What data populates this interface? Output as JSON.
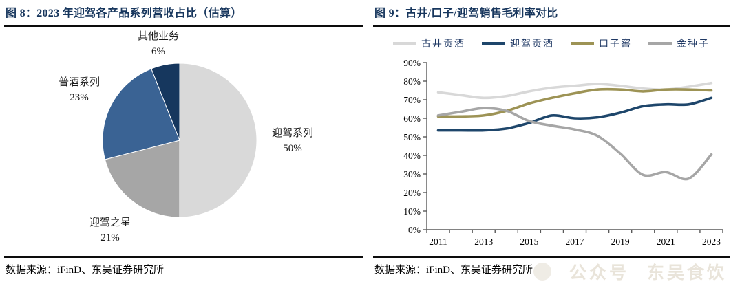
{
  "fig8": {
    "title": "图 8：2023 年迎驾各产品系列营收占比（估算）",
    "source": "数据来源：iFinD、东吴证券研究所"
  },
  "fig9": {
    "title": "图 9：古井/口子/迎驾销售毛利率对比",
    "source": "数据来源：iFinD、东吴证券研究所",
    "watermark": {
      "prefix": "公众号",
      "name": "东吴食饮"
    }
  },
  "chart_data": [
    {
      "type": "pie",
      "figure": "图 8",
      "title": "2023 年迎驾各产品系列营收占比（估算）",
      "unit": "%",
      "direction": "clockwise",
      "start_angle_deg": 0,
      "slices": [
        {
          "label": "迎驾系列",
          "value": 50,
          "color": "#d9d9d9"
        },
        {
          "label": "迎驾之星",
          "value": 21,
          "color": "#a6a6a6"
        },
        {
          "label": "普酒系列",
          "value": 23,
          "color": "#3a6394"
        },
        {
          "label": "其他业务",
          "value": 6,
          "color": "#16375e"
        }
      ]
    },
    {
      "type": "line",
      "figure": "图 9",
      "title": "古井/口子/迎驾销售毛利率对比",
      "x": [
        2011,
        2012,
        2013,
        2014,
        2015,
        2016,
        2017,
        2018,
        2019,
        2020,
        2021,
        2022,
        2023
      ],
      "x_tick_labels": [
        "2011",
        "2013",
        "2015",
        "2017",
        "2019",
        "2021",
        "2023"
      ],
      "ylim": [
        0,
        90
      ],
      "y_ticks_percent": [
        0,
        10,
        20,
        30,
        40,
        50,
        60,
        70,
        80,
        90
      ],
      "grid": false,
      "legend_position": "top",
      "series": [
        {
          "name": "古井贡酒",
          "color": "#d8d8d8",
          "values": [
            74,
            72.5,
            71,
            72,
            74.5,
            76.5,
            77.5,
            78.5,
            77.5,
            76,
            75.5,
            77,
            79
          ]
        },
        {
          "name": "迎驾贡酒",
          "color": "#1e466b",
          "values": [
            53.5,
            53.5,
            53.5,
            54.5,
            57.5,
            61.5,
            60,
            60.5,
            63,
            66.5,
            67.5,
            67.5,
            71
          ]
        },
        {
          "name": "口子窖",
          "color": "#9d9355",
          "values": [
            61,
            61,
            61.5,
            64,
            68,
            71,
            73.5,
            75.5,
            75.5,
            74.5,
            75.5,
            75.5,
            75
          ]
        },
        {
          "name": "金种子",
          "color": "#a6a6a6",
          "values": [
            61.5,
            63.5,
            65.5,
            64,
            58.5,
            56,
            54,
            50.5,
            41,
            29.5,
            31,
            27.5,
            40.5
          ]
        }
      ]
    }
  ]
}
